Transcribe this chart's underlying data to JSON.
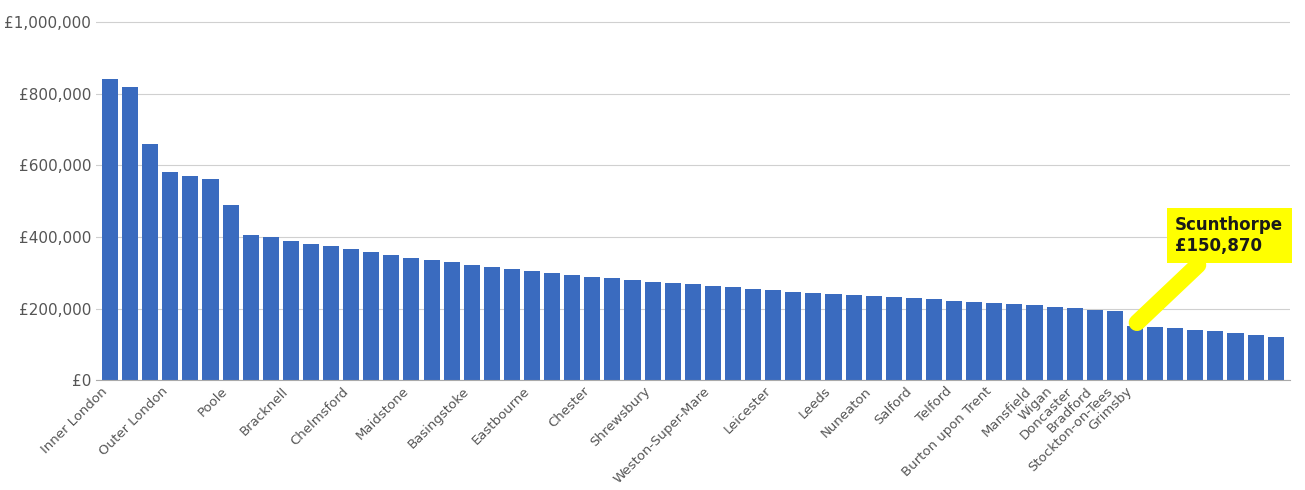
{
  "categories": [
    "Inner London",
    "Outer London",
    "Poole",
    "Bracknell",
    "Chelmsford",
    "Maidstone",
    "Basingstoke",
    "Eastbourne",
    "Chester",
    "Shrewsbury",
    "Weston-Super-Mare",
    "Leicester",
    "Leeds",
    "Nuneaton",
    "Salford",
    "Telford",
    "Burton upon Trent",
    "Mansfield",
    "Wigan",
    "Doncaster",
    "Bradford",
    "Stockton-on-Tees",
    "Grimsby"
  ],
  "label_indices": [
    0,
    3,
    6,
    9,
    12,
    15,
    18,
    21,
    24,
    27,
    30,
    33,
    36,
    38,
    40,
    42,
    44,
    46,
    47,
    48,
    49,
    50,
    51
  ],
  "values": [
    840000,
    820000,
    660000,
    582000,
    570000,
    562000,
    490000,
    405000,
    400000,
    390000,
    382000,
    375000,
    367000,
    358000,
    350000,
    343000,
    337000,
    330000,
    323000,
    316000,
    310000,
    305000,
    300000,
    295000,
    290000,
    285000,
    280000,
    276000,
    272000,
    268000,
    264000,
    260000,
    256000,
    252000,
    248000,
    244000,
    241000,
    238000,
    235000,
    232000,
    229000,
    226000,
    223000,
    220000,
    217000,
    214000,
    210000,
    206000,
    202000,
    198000,
    195000,
    150870,
    148000,
    145000,
    142000,
    138000,
    133000,
    128000,
    120000
  ],
  "bar_color": "#3a6bbf",
  "annotation_city": "Scunthorpe",
  "annotation_value": "£150,870",
  "annotation_bg": "#ffff00",
  "annotation_text_color": "#1a1a1a",
  "annotation_bar_index": 51,
  "background_color": "#ffffff",
  "ylabel_ticks": [
    "£0",
    "£200,000",
    "£400,000",
    "£600,000",
    "£800,000",
    "£1,000,000"
  ],
  "ytick_values": [
    0,
    200000,
    400000,
    600000,
    800000,
    1000000
  ],
  "ylim": [
    0,
    1050000
  ],
  "grid_color": "#d0d0d0",
  "spine_color": "#aaaaaa"
}
